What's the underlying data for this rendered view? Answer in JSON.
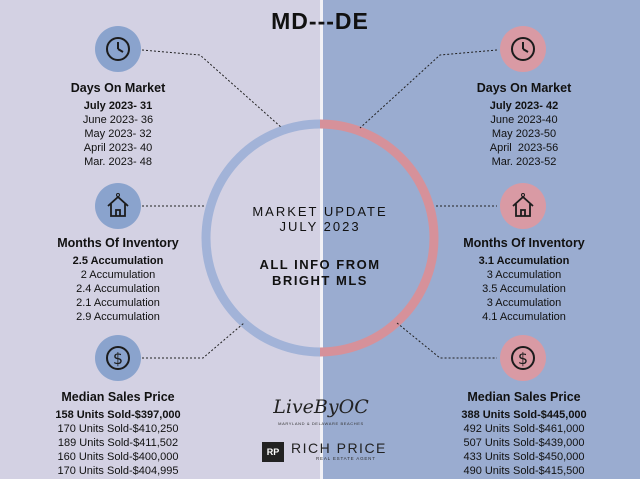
{
  "title": "MD---DE",
  "center": {
    "line1": "MARKET UPDATE",
    "line2": "JULY 2023",
    "line3": "ALL INFO FROM",
    "line4": "BRIGHT MLS"
  },
  "colors": {
    "left_bg": "#d3d1e3",
    "right_bg": "#9aacd0",
    "ring_blue": "#a2b3d8",
    "ring_pink": "#d6919a"
  },
  "left": {
    "days": {
      "icon": "clock-icon",
      "heading": "Days On Market",
      "first": "July 2023- 31",
      "rows": [
        "June 2023- 36",
        "May 2023- 32",
        "April 2023- 40",
        "Mar. 2023- 48"
      ]
    },
    "inventory": {
      "icon": "house-icon",
      "heading": "Months Of Inventory",
      "first": "2.5 Accumulation",
      "rows": [
        "2 Accumulation",
        "2.4 Accumulation",
        "2.1 Accumulation",
        "2.9 Accumulation"
      ]
    },
    "price": {
      "icon": "dollar-icon",
      "heading": "Median Sales Price",
      "first": "158 Units Sold-$397,000",
      "rows": [
        "170 Units Sold-$410,250",
        "189 Units Sold-$411,502",
        "160 Units Sold-$400,000",
        "170 Units Sold-$404,995"
      ]
    }
  },
  "right": {
    "days": {
      "icon": "clock-icon",
      "heading": "Days On Market",
      "first": "July 2023- 42",
      "rows": [
        "June 2023-40",
        "May 2023-50",
        "April  2023-56",
        "Mar. 2023-52"
      ]
    },
    "inventory": {
      "icon": "house-icon",
      "heading": "Months Of Inventory",
      "first": "3.1 Accumulation",
      "rows": [
        "3 Accumulation",
        "3.5 Accumulation",
        "3 Accumulation",
        "4.1 Accumulation"
      ]
    },
    "price": {
      "icon": "dollar-icon",
      "heading": "Median Sales Price",
      "first": "388 Units Sold-$445,000",
      "rows": [
        "492 Units Sold-$461,000",
        "507 Units Sold-$439,000",
        "433 Units Sold-$450,000",
        "490 Units Sold-$415,500"
      ]
    }
  },
  "logo": {
    "script": "LiveByOC",
    "sub": "MARYLAND & DELAWARE BEACHES",
    "rp_mark": "RP",
    "name": "RICH PRICE",
    "role": "REAL ESTATE AGENT"
  }
}
